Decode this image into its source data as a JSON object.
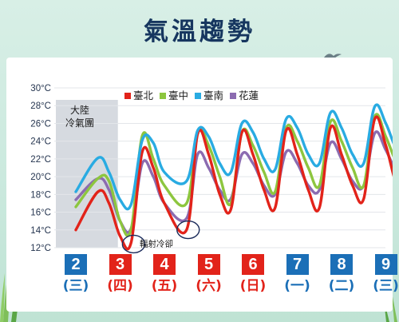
{
  "title": "氣溫趨勢",
  "colors": {
    "taipei": "#e2231a",
    "taichung": "#8dc63f",
    "tainan": "#29abe2",
    "hualien": "#8b6bb0",
    "weekday_box": "#1b6fb7",
    "weekend_box": "#e2231a",
    "weekday_text": "#1b6fb7",
    "weekend_text": "#e2231a"
  },
  "chart_data": {
    "type": "line",
    "ylabel": "",
    "xlabel": "",
    "ylim": [
      12,
      30
    ],
    "y_ticks": [
      "12°C",
      "14°C",
      "16°C",
      "18°C",
      "20°C",
      "22°C",
      "24°C",
      "26°C",
      "28°C",
      "30°C"
    ],
    "legend_position": "top",
    "x_days": [
      {
        "date": "2",
        "dow": "(三)",
        "type": "weekday"
      },
      {
        "date": "3",
        "dow": "(四)",
        "type": "weekend"
      },
      {
        "date": "4",
        "dow": "(五)",
        "type": "weekend"
      },
      {
        "date": "5",
        "dow": "(六)",
        "type": "weekend"
      },
      {
        "date": "6",
        "dow": "(日)",
        "type": "weekend"
      },
      {
        "date": "7",
        "dow": "(一)",
        "type": "weekday"
      },
      {
        "date": "8",
        "dow": "(二)",
        "type": "weekday"
      },
      {
        "date": "9",
        "dow": "(三)",
        "type": "weekday"
      }
    ],
    "x": [
      1,
      1.5,
      1.75,
      2,
      2.25,
      2.5,
      2.75,
      3,
      3.5,
      3.75,
      4,
      4.25,
      4.5,
      4.75,
      5,
      5.25,
      5.5,
      5.75,
      6,
      6.25,
      6.5,
      6.75,
      7,
      7.25,
      7.5,
      7.75,
      8,
      8.25,
      8.5,
      8.75,
      9
    ],
    "series": [
      {
        "name": "臺北",
        "key": "taipei",
        "values": [
          14.0,
          18.3,
          17.0,
          13.3,
          12.6,
          22.8,
          21.0,
          17.0,
          14.0,
          24.8,
          22.5,
          18.0,
          16.3,
          25.0,
          22.5,
          18.5,
          16.5,
          25.2,
          22.5,
          18.5,
          16.5,
          25.5,
          22.5,
          19.0,
          17.5,
          26.5,
          23.5,
          19.0,
          18.0,
          26.8,
          20.7
        ]
      },
      {
        "name": "臺中",
        "key": "taichung",
        "values": [
          16.6,
          19.8,
          19.5,
          15.0,
          14.1,
          24.6,
          22.0,
          19.0,
          17.0,
          25.0,
          23.5,
          20.0,
          17.0,
          25.0,
          23.5,
          20.5,
          18.3,
          25.5,
          24.0,
          21.0,
          19.0,
          26.2,
          24.0,
          21.0,
          19.0,
          26.8,
          24.5,
          21.5,
          20.3,
          27.1,
          21.5
        ]
      },
      {
        "name": "臺南",
        "key": "tainan",
        "values": [
          18.3,
          22.1,
          20.5,
          17.4,
          16.9,
          24.1,
          23.8,
          20.5,
          19.5,
          25.2,
          24.5,
          21.5,
          20.5,
          26.0,
          25.0,
          22.0,
          20.8,
          26.5,
          25.5,
          22.5,
          21.5,
          27.2,
          25.5,
          22.5,
          21.5,
          27.9,
          26.0,
          23.0,
          22.3,
          27.9,
          22.3
        ]
      },
      {
        "name": "花蓮",
        "key": "hualien",
        "values": [
          17.4,
          19.8,
          18.5,
          15.0,
          14.2,
          21.5,
          20.0,
          17.0,
          15.3,
          22.5,
          21.0,
          18.5,
          17.5,
          22.5,
          21.5,
          19.0,
          18.0,
          22.8,
          21.5,
          19.0,
          18.5,
          23.8,
          22.0,
          19.5,
          19.0,
          24.9,
          23.0,
          20.5,
          20.0,
          24.8,
          20.0
        ]
      }
    ],
    "annotations": {
      "continental_label_line1": "大陸",
      "continental_label_line2": "冷氣團",
      "radiative_cooling_label": "輻射冷卻"
    }
  }
}
